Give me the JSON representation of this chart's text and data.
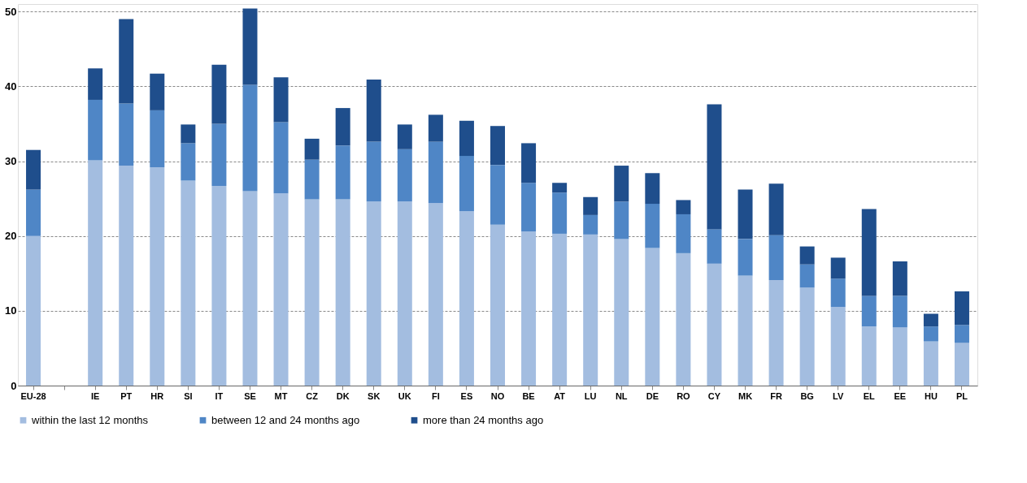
{
  "chart_data": {
    "type": "bar",
    "stacked": true,
    "categories": [
      "EU-28",
      null,
      "IE",
      "PT",
      "HR",
      "SI",
      "IT",
      "SE",
      "MT",
      "CZ",
      "DK",
      "SK",
      "UK",
      "FI",
      "ES",
      "NO",
      "BE",
      "AT",
      "LU",
      "NL",
      "DE",
      "RO",
      "CY",
      "MK",
      "FR",
      "BG",
      "LV",
      "EL",
      "EE",
      "HU",
      "PL"
    ],
    "series": [
      {
        "name": "within the last 12 months",
        "color": "#a3bde0",
        "values": [
          20.0,
          null,
          30.1,
          29.4,
          29.2,
          27.4,
          26.7,
          26.0,
          25.7,
          24.9,
          24.9,
          24.6,
          24.6,
          24.4,
          23.3,
          21.5,
          20.6,
          20.3,
          20.2,
          19.6,
          18.4,
          17.7,
          16.3,
          14.7,
          14.1,
          13.1,
          10.5,
          7.9,
          7.8,
          5.9,
          5.7
        ]
      },
      {
        "name": "between 12 and 24 months ago",
        "color": "#4f86c6",
        "values": [
          6.2,
          null,
          8.1,
          8.3,
          7.6,
          5.0,
          8.3,
          14.2,
          9.5,
          5.3,
          7.2,
          8.0,
          7.0,
          8.2,
          7.4,
          8.0,
          6.5,
          5.5,
          2.6,
          5.0,
          5.9,
          5.2,
          4.6,
          4.9,
          6.0,
          3.1,
          3.8,
          4.1,
          4.2,
          2.0,
          2.4
        ]
      },
      {
        "name": "more than 24 months ago",
        "color": "#1f4e8c",
        "values": [
          5.3,
          null,
          4.2,
          11.3,
          4.9,
          2.5,
          7.9,
          10.2,
          6.0,
          2.8,
          5.0,
          8.3,
          3.3,
          3.6,
          4.7,
          5.2,
          5.3,
          1.3,
          2.4,
          4.8,
          4.1,
          1.9,
          16.7,
          6.6,
          6.9,
          2.4,
          2.8,
          11.6,
          4.6,
          1.7,
          4.5
        ]
      }
    ],
    "ylim": [
      0,
      51
    ],
    "yticks": [
      0,
      10,
      20,
      30,
      40,
      50
    ],
    "grid": "y",
    "legend": "bottom"
  }
}
